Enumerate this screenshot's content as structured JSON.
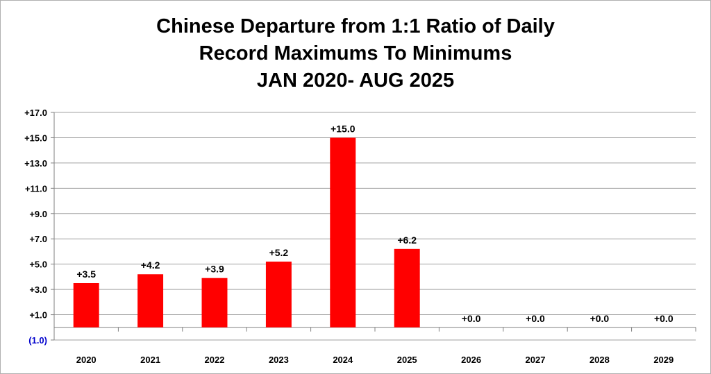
{
  "chart_data": {
    "type": "bar",
    "title_lines": [
      "Chinese  Departure from 1:1 Ratio of Daily",
      "Record Maximums To Minimums",
      "JAN 2020- AUG 2025"
    ],
    "categories": [
      "2020",
      "2021",
      "2022",
      "2023",
      "2024",
      "2025",
      "2026",
      "2027",
      "2028",
      "2029"
    ],
    "values": [
      3.5,
      4.2,
      3.9,
      5.2,
      15.0,
      6.2,
      0.0,
      0.0,
      0.0,
      0.0
    ],
    "data_labels": [
      "+3.5",
      "+4.2",
      "+3.9",
      "+5.2",
      "+15.0",
      "+6.2",
      "+0.0",
      "+0.0",
      "+0.0",
      "+0.0"
    ],
    "baseline": 0,
    "ylim": [
      -1,
      17
    ],
    "yticks": [
      {
        "value": 17,
        "label": "+17.0"
      },
      {
        "value": 15,
        "label": "+15.0"
      },
      {
        "value": 13,
        "label": "+13.0"
      },
      {
        "value": 11,
        "label": "+11.0"
      },
      {
        "value": 9,
        "label": "+9.0"
      },
      {
        "value": 7,
        "label": "+7.0"
      },
      {
        "value": 5,
        "label": "+5.0"
      },
      {
        "value": 3,
        "label": "+3.0"
      },
      {
        "value": 1,
        "label": "+1.0"
      },
      {
        "value": -1,
        "label": "(1.0)"
      }
    ],
    "xlabel": "",
    "ylabel": "",
    "grid": true,
    "legend": "none",
    "colors": {
      "bar": "#ff0000",
      "grid": "#a0a0a0",
      "axis": "#808080",
      "negative_tick": "#0000cc",
      "text": "#000000"
    }
  }
}
